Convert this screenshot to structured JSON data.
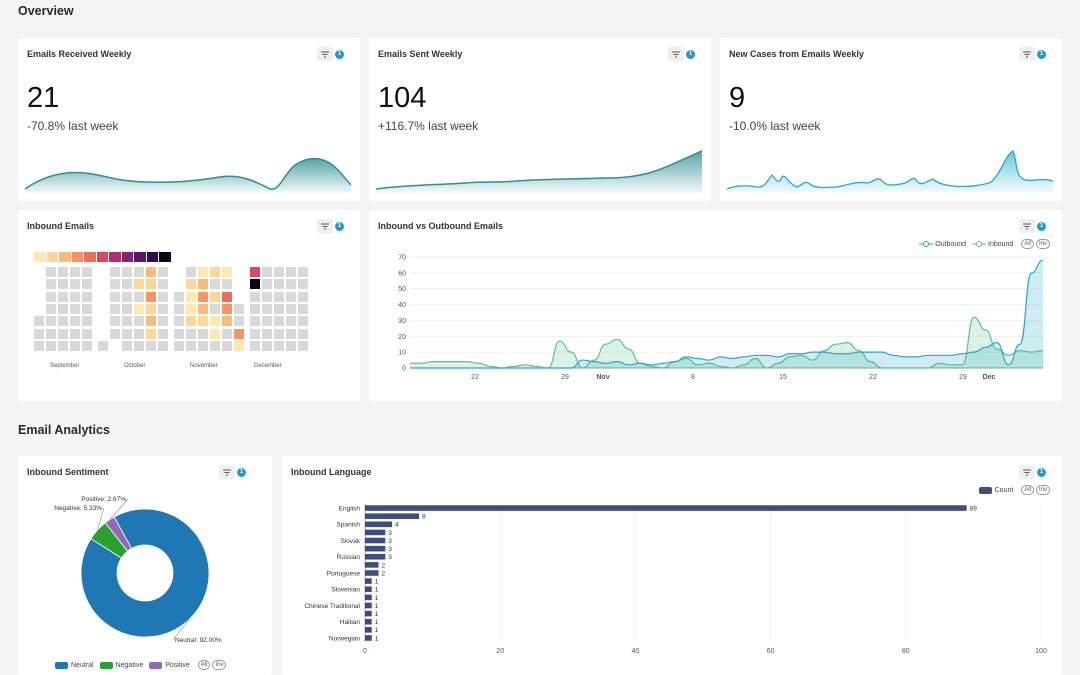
{
  "sections": {
    "overview": "Overview",
    "analytics": "Email Analytics"
  },
  "filter_badge": "1",
  "kpis": [
    {
      "title": "Emails Received Weekly",
      "value": "21",
      "change": "-70.8% last week"
    },
    {
      "title": "Emails Sent Weekly",
      "value": "104",
      "change": "+116.7% last week"
    },
    {
      "title": "New Cases from Emails Weekly",
      "value": "9",
      "change": "-10.0% last week"
    }
  ],
  "inbound_emails": {
    "title": "Inbound Emails",
    "months": [
      "September",
      "October",
      "November",
      "December"
    ]
  },
  "inout": {
    "title": "Inbound vs Outbound Emails",
    "legend": [
      "Outbound",
      "Inbound"
    ],
    "pill_all": "All",
    "pill_inv": "Inv"
  },
  "sentiment": {
    "title": "Inbound Sentiment",
    "legend": [
      "Neutral",
      "Negative",
      "Positive"
    ],
    "labels": [
      "Neutral: 92.00%",
      "Negative: 5.33%",
      "Positive: 2.67%"
    ],
    "pill_all": "All",
    "pill_inv": "Inv"
  },
  "language": {
    "title": "Inbound Language",
    "legend": "Count",
    "pill_all": "All",
    "pill_inv": "Inv"
  },
  "chart_data": [
    {
      "type": "line",
      "title": "Inbound vs Outbound Emails",
      "x_tick_labels": [
        "22",
        "29",
        "Nov",
        "8",
        "15",
        "22",
        "29",
        "Dec"
      ],
      "y_ticks": [
        0,
        10,
        20,
        30,
        40,
        50,
        60,
        70
      ],
      "ylim": [
        0,
        70
      ],
      "series": [
        {
          "name": "Outbound",
          "color": "#2aa7c9",
          "values": [
            0,
            0,
            0,
            0,
            0,
            0,
            0,
            0,
            0,
            0,
            0,
            0,
            0,
            0,
            0,
            5,
            4,
            3,
            4,
            2,
            3,
            2,
            3,
            4,
            7,
            6,
            5,
            7,
            6,
            7,
            8,
            8,
            7,
            9,
            9,
            10,
            10,
            9,
            9,
            10,
            10,
            10,
            8,
            7,
            7,
            8,
            8,
            8,
            9,
            10,
            13,
            16,
            2,
            15,
            60,
            68
          ]
        },
        {
          "name": "Inbound",
          "color": "#5cc38d",
          "values": [
            3,
            3,
            4,
            4,
            4,
            4,
            3,
            1,
            0,
            1,
            2,
            1,
            0,
            17,
            10,
            0,
            5,
            15,
            18,
            12,
            3,
            1,
            0,
            4,
            6,
            2,
            3,
            1,
            0,
            2,
            6,
            0,
            3,
            7,
            8,
            5,
            11,
            15,
            16,
            11,
            4,
            0,
            0,
            0,
            0,
            0,
            3,
            2,
            2,
            32,
            24,
            12,
            8,
            11,
            10,
            11
          ]
        }
      ]
    },
    {
      "type": "pie",
      "title": "Inbound Sentiment",
      "categories": [
        "Neutral",
        "Negative",
        "Positive"
      ],
      "values": [
        92.0,
        5.33,
        2.67
      ],
      "colors": [
        "#1f77b4",
        "#2ca02c",
        "#9467bd"
      ]
    },
    {
      "type": "bar",
      "title": "Inbound Language",
      "orientation": "horizontal",
      "categories": [
        "English",
        "",
        "Spanish",
        "",
        "Slovak",
        "",
        "Russian",
        "",
        "Portuguese",
        "",
        "Slovenian",
        "",
        "Chinese Traditional",
        "",
        "Haitian",
        "",
        "Norwegian"
      ],
      "values": [
        89,
        8,
        4,
        3,
        3,
        3,
        3,
        2,
        2,
        1,
        1,
        1,
        1,
        1,
        1,
        1,
        1
      ],
      "value_labels": [
        "89",
        "8",
        "4",
        "3",
        "3",
        "3",
        "3",
        "2",
        "2",
        "1",
        "1",
        "1",
        "1",
        "1",
        "1",
        "1",
        "1"
      ],
      "x_ticks": [
        0,
        20,
        40,
        60,
        80,
        100
      ],
      "xlim": [
        0,
        100
      ],
      "series": [
        {
          "name": "Count",
          "color": "#3f4d7d"
        }
      ]
    },
    {
      "type": "heatmap",
      "title": "Inbound Emails",
      "scale_colors": [
        "#fbe9b0",
        "#fcd796",
        "#fbb97a",
        "#f99361",
        "#ef6e5a",
        "#d8485f",
        "#b22f6b",
        "#832470",
        "#55186b",
        "#2b0f4d",
        "#0a0617"
      ]
    }
  ]
}
